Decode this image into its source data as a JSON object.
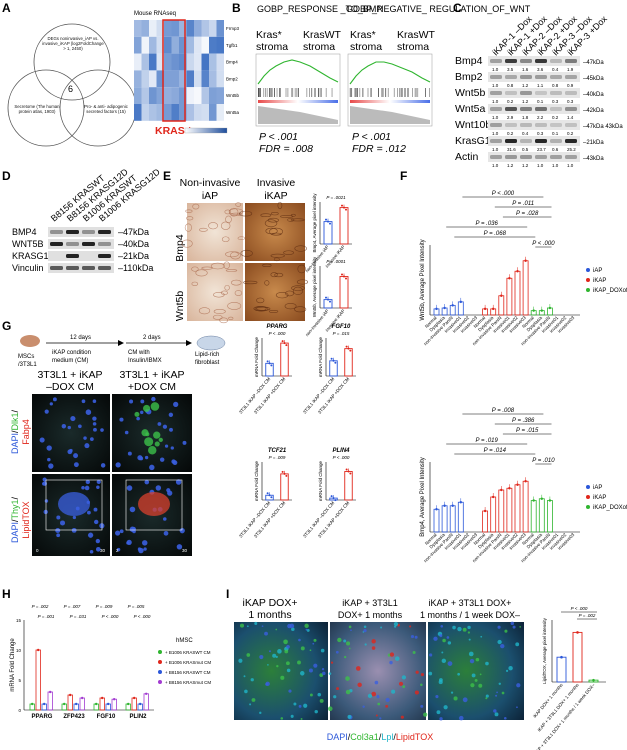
{
  "panels": [
    "A",
    "B",
    "C",
    "D",
    "E",
    "F",
    "G",
    "H",
    "I"
  ],
  "colors": {
    "iAP": "#2b57d9",
    "iKAP": "#e0261b",
    "iKAP_DOXoff": "#2fb52f",
    "B8156_WT": "#2b57d9",
    "B1006_mut": "#e0261b",
    "B1006_WT": "#2fb52f",
    "B8156_mut": "#a23bd1"
  },
  "a": {
    "venn": {
      "top": "DEGs noninvasive_iAP vs. invasive_iKAP (log2FoldChange > 1, 2450)",
      "left": "Secretome (The human protein atlas, 1903)",
      "right": "Pro- & anti- adipogenic secreted factors (15)",
      "center": "6"
    },
    "heatmap_title": "Mouse RNAseq",
    "genes": [
      "Frmp3",
      "Tgfb1",
      "Bmp4",
      "Bmp2",
      "Wnt5b",
      "Wnt5a"
    ],
    "kras_label": "KRAS *"
  },
  "b": {
    "titles": [
      "GOBP_RESPONSE _TO_BMP",
      "GOBP_NEGATIVE_ REGULATION_OF_WNT"
    ],
    "pair_left": "Kras*",
    "pair_right": "KrasWT",
    "stroma": "stroma",
    "stats": [
      [
        "P < .001",
        "FDR = .008"
      ],
      [
        "P < .001",
        "FDR = .012"
      ]
    ]
  },
  "c": {
    "lanes": [
      "iKAP-1 –Dox",
      "iKAP-1 +Dox",
      "iKAP-2 –Dox",
      "iKAP-2 +Dox",
      "iKAP-3 –Dox",
      "iKAP-3 +Dox"
    ],
    "bands": [
      {
        "name": "Bmp4",
        "size": "47kDa",
        "vals": [
          "1.0",
          "3.5",
          "1.6",
          "3.6",
          "0.4",
          "1.9"
        ]
      },
      {
        "name": "Bmp2",
        "size": "45kDa",
        "vals": [
          "1.0",
          "0.8",
          "1.2",
          "1.1",
          "0.8",
          "0.9"
        ]
      },
      {
        "name": "Wnt5b",
        "size": "40kDa",
        "vals": [
          "1.0",
          "0.2",
          "1.2",
          "0.1",
          "0.3",
          "0.3"
        ]
      },
      {
        "name": "Wnt5a",
        "size": "42kDa",
        "vals": [
          "1.0",
          "2.9",
          "1.8",
          "2.2",
          "0.2",
          "1.4"
        ]
      },
      {
        "name": "Wnt10b",
        "size": "47kDa 43kDa",
        "vals": [
          "1.0",
          "0.2",
          "0.4",
          "0.3",
          "0.1",
          "0.2"
        ]
      },
      {
        "name": "KrasG12D",
        "size": "21kDa",
        "vals": [
          "1.0",
          "31.6",
          "0.5",
          "23.7",
          "0.6",
          "25.2"
        ]
      },
      {
        "name": "Actin",
        "size": "43kDa",
        "vals": [
          "1.0",
          "1.2",
          "1.2",
          "1.0",
          "1.0",
          "1.0"
        ]
      }
    ]
  },
  "d": {
    "lanes": [
      "B8156 KRASWT",
      "B8156 KRASG12D",
      "B1006 KRASWT",
      "B1006 KRASG12D"
    ],
    "bands": [
      {
        "name": "BMP4",
        "size": "47kDa"
      },
      {
        "name": "WNT5B",
        "size": "40kDa"
      },
      {
        "name": "KRASG12D",
        "size": "21kDa"
      },
      {
        "name": "Vinculin",
        "size": "110kDa"
      }
    ]
  },
  "e": {
    "col1": "Non-invasive iAP",
    "col2": "Invasive iKAP",
    "rows": [
      "Bmp4",
      "Wnt5b"
    ],
    "p_top": "P = .0021",
    "p_bot": "P = .0001",
    "ylab_top": "Bmp4, Average pixel intensity",
    "ylab_bot": "Wnt5b, Average pixel intensity",
    "xcats": [
      "non-invasive iAP",
      "invasive iKAP"
    ]
  },
  "f": {
    "legend": [
      "iAP",
      "iKAP",
      "iKAP_DOXoff"
    ],
    "categories": [
      "Normal",
      "Dysplasia",
      "non-invasive PanIN",
      "invasive01",
      "invasive02",
      "invasive03",
      "Normal",
      "Dysplasia",
      "non-invasive PanIN",
      "invasive01",
      "invasive02",
      "invasive03",
      "Normal",
      "Dysplasia",
      "non-invasive PanIN",
      "invasive01",
      "invasive02",
      "invasive03"
    ],
    "top_stats": [
      "P < .000",
      "P = .011",
      "P = .028",
      "P = .036",
      "P = .068",
      "P < .000"
    ],
    "bot_stats": [
      "P = .008",
      "P = .386",
      "P = .015",
      "P = .019",
      "P = .014",
      "P = .010"
    ]
  },
  "g": {
    "flow": [
      "MSCs /3T3L1",
      "12 days",
      "iKAP condition medium (CM)",
      "2 days",
      "CM with Insulin/IBMX",
      "Lipid-rich fibroblast"
    ],
    "col1": "3T3L1 + iKAP –DOX CM",
    "col2": "3T3L1 + iKAP +DOX CM",
    "row1": "DAPI/Dlk1/ Fabp4",
    "row2": "DAPI/Thy1/ LipidTOX",
    "scale": "30 μm",
    "scale_ticks": [
      "0",
      "2",
      "30"
    ],
    "bars": [
      {
        "gene": "PPARG",
        "p": "P < .000"
      },
      {
        "gene": "FGF10",
        "p": "P = .015"
      },
      {
        "gene": "TCF21",
        "p": "P = .009"
      },
      {
        "gene": "PLIN4",
        "p": "P < .000"
      }
    ],
    "ylab": "mRNA Fold Change",
    "xcats": [
      "3T3L1 iKAP –DOX CM",
      "3T3L1 iKAP +DOX CM"
    ]
  },
  "h": {
    "ylab": "mRNA Fold Change",
    "genes": [
      "PPARG",
      "ZFP423",
      "FGF10",
      "PLIN2"
    ],
    "stats_top": [
      "P = .002",
      "P = .007",
      "P = .009",
      "P = .005"
    ],
    "stats_bot": [
      "P = .001",
      "P = .031",
      "P < .000",
      "P < .000"
    ],
    "legend_title": "hMSC",
    "legend": [
      "+ B1006 KRASWT CM",
      "+ B1006 KRASmut CM",
      "+ B8156 KRASWT CM",
      "+ B8156 KRASmut CM"
    ]
  },
  "i": {
    "cols": [
      "iKAP DOX+ 1 months",
      "iKAP + 3T3L1 DOX+ 1 months",
      "iKAP + 3T3L1 DOX+ 1 months / 1 week DOX–"
    ],
    "stain": "DAPI/Col3a1/Lpl/LipidTOX",
    "stats": [
      "P < .000",
      "P = .002"
    ],
    "ylab": "LipidTOX, Average pixel intensity"
  },
  "chart_data": [
    {
      "type": "bar",
      "panel": "E-top",
      "categories": [
        "non-invasive iAP",
        "invasive iKAP"
      ],
      "values": [
        80,
        130
      ],
      "ylim": [
        0,
        150
      ]
    },
    {
      "type": "bar",
      "panel": "E-bottom",
      "categories": [
        "non-invasive iAP",
        "invasive iKAP"
      ],
      "values": [
        40,
        150
      ],
      "ylim": [
        0,
        200
      ]
    },
    {
      "type": "bar",
      "panel": "F-top",
      "categories": [
        "Normal",
        "Dysplasia",
        "non-invasive PanIN",
        "invasive01",
        "invasive02",
        "invasive03"
      ],
      "series": [
        {
          "name": "iAP",
          "values": [
            7,
            8,
            11,
            15,
            0,
            0
          ]
        },
        {
          "name": "iKAP",
          "values": [
            7,
            7,
            22,
            42,
            50,
            62
          ]
        },
        {
          "name": "iKAP_DOXoff",
          "values": [
            5,
            5,
            8,
            0,
            0,
            0
          ]
        }
      ],
      "ylim": [
        0,
        80
      ],
      "ylabel": "Wnt5b, Average Pixel Intensity"
    },
    {
      "type": "bar",
      "panel": "F-bottom",
      "categories": [
        "Normal",
        "Dysplasia",
        "non-invasive PanIN",
        "invasive01",
        "invasive02",
        "invasive03"
      ],
      "series": [
        {
          "name": "iAP",
          "values": [
            13,
            15,
            15,
            17,
            0,
            0
          ]
        },
        {
          "name": "iKAP",
          "values": [
            12,
            20,
            24,
            25,
            27,
            29
          ]
        },
        {
          "name": "iKAP_DOXoff",
          "values": [
            18,
            19,
            18,
            0,
            0,
            0
          ]
        }
      ],
      "ylim": [
        0,
        40
      ],
      "ylabel": "Bmp4, Average Pixel Intensity"
    },
    {
      "type": "bar",
      "panel": "G-PPARG",
      "categories": [
        "3T3L1 iKAP –DOX CM",
        "3T3L1 iKAP +DOX CM"
      ],
      "values": [
        1.0,
        2.6
      ],
      "ylim": [
        0,
        3
      ]
    },
    {
      "type": "bar",
      "panel": "G-FGF10",
      "categories": [
        "3T3L1 iKAP –DOX CM",
        "3T3L1 iKAP +DOX CM"
      ],
      "values": [
        1.0,
        1.8
      ],
      "ylim": [
        0,
        2.5
      ]
    },
    {
      "type": "bar",
      "panel": "G-TCF21",
      "categories": [
        "3T3L1 iKAP –DOX CM",
        "3T3L1 iKAP +DOX CM"
      ],
      "values": [
        1.0,
        5.5
      ],
      "ylim": [
        0,
        8
      ]
    },
    {
      "type": "bar",
      "panel": "G-PLIN4",
      "categories": [
        "3T3L1 iKAP –DOX CM",
        "3T3L1 iKAP +DOX CM"
      ],
      "values": [
        1.0,
        15
      ],
      "ylim": [
        0,
        20
      ]
    },
    {
      "type": "bar",
      "panel": "H",
      "categories": [
        "PPARG",
        "ZFP423",
        "FGF10",
        "PLIN2"
      ],
      "series": [
        {
          "name": "+ B1006 KRASWT CM",
          "values": [
            1,
            1,
            1,
            1
          ]
        },
        {
          "name": "+ B1006 KRASmut CM",
          "values": [
            10,
            2.5,
            2,
            2
          ]
        },
        {
          "name": "+ B8156 KRASWT CM",
          "values": [
            1,
            1,
            1,
            1
          ]
        },
        {
          "name": "+ B8156 KRASmut CM",
          "values": [
            3,
            2,
            1.8,
            2.7
          ]
        }
      ],
      "ylim": [
        0,
        15
      ],
      "ylabel": "mRNA Fold Change"
    },
    {
      "type": "bar",
      "panel": "I",
      "categories": [
        "iKAP DOX+ 1 months",
        "iKAP + 3T3L1 DOX+ 1 months",
        "iKAP + 3T3L1 DOX+ 1 months / 1 week DOX–"
      ],
      "values": [
        4,
        8,
        0.3
      ],
      "ylim": [
        0,
        10
      ],
      "ylabel": "LipidTOX, Average pixel intensity"
    }
  ]
}
